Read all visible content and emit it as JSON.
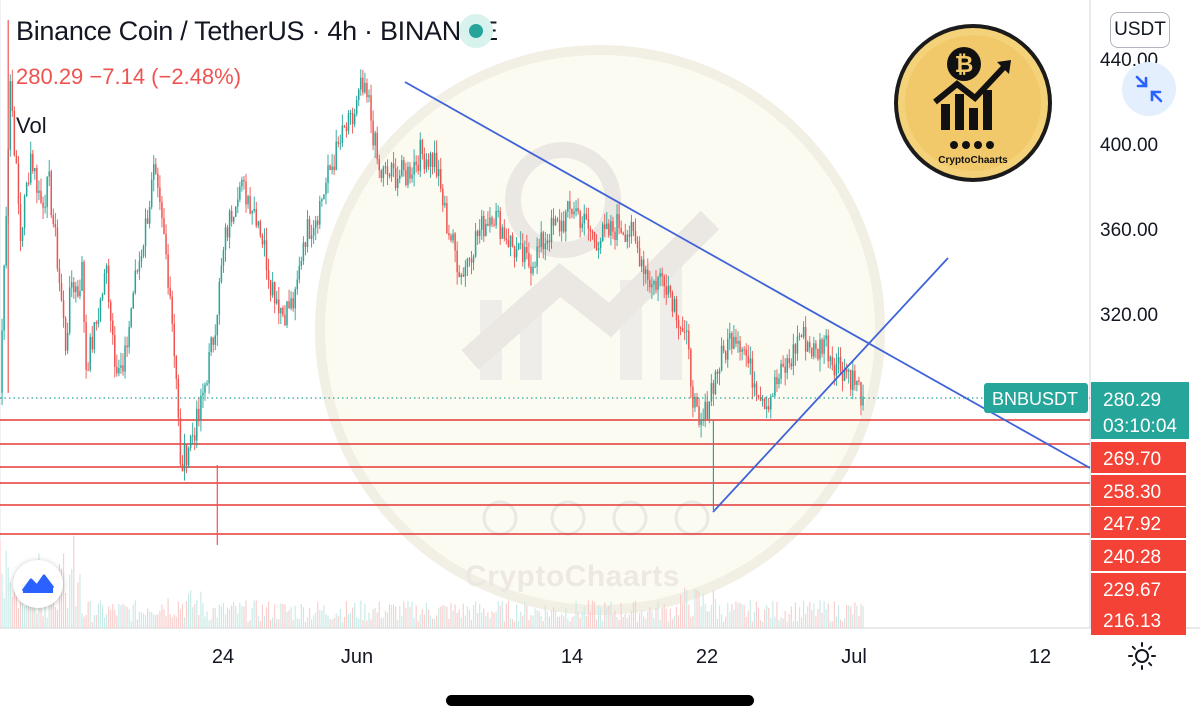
{
  "header": {
    "symbol": "Binance Coin / TetherUS",
    "interval": "4h",
    "exchange": "BINANCE",
    "price_line": "280.29  −7.14 (−2.48%)",
    "vol_label": "Vol"
  },
  "currency_button": "USDT",
  "watermark": {
    "brand": "CryptoChaarts"
  },
  "colors": {
    "up": "#26a69a",
    "down": "#ef5350",
    "trendline": "#3f63d8",
    "level": "#e53935",
    "level_label_bg": "#f44336",
    "price_label_bg": "#26a69a"
  },
  "icons": [
    "tradingview-logo-icon",
    "collapse-arrows-icon",
    "settings-sun-icon",
    "status-dot-icon",
    "bitcoin-chart-logo-icon"
  ],
  "chart_data": {
    "type": "candlestick",
    "interval": "4h",
    "ylim": [
      213,
      443
    ],
    "y_ticks": [
      400,
      360,
      320
    ],
    "x_ticks": [
      {
        "label": "24",
        "i": 87
      },
      {
        "label": "Jun",
        "i": 136
      },
      {
        "label": "14",
        "i": 274
      },
      {
        "label": "22",
        "i": 342
      },
      {
        "label": "Jul",
        "i": 412
      },
      {
        "label": "12",
        "i": 504
      }
    ],
    "current_price": {
      "symbol": "BNBUSDT",
      "value": "280.29",
      "countdown": "03:10:04"
    },
    "levels": [
      {
        "value": 270.8,
        "label": ""
      },
      {
        "value": 269.7,
        "label": "269.70"
      },
      {
        "value": 258.3,
        "label": "258.30"
      },
      {
        "value": 247.92,
        "label": "247.92"
      },
      {
        "value": 240.28,
        "label": "240.28"
      },
      {
        "value": 229.67,
        "label": "229.67"
      },
      {
        "value": 216.13,
        "label": "216.13"
      }
    ],
    "trendlines": [
      {
        "from": {
          "i": 177,
          "y": 428
        },
        "to": {
          "i": 548,
          "y": 251
        }
      },
      {
        "from": {
          "i": 346,
          "y": 231
        },
        "to": {
          "i": 463,
          "y": 346
        }
      }
    ],
    "price_anchors": [
      [
        0,
        282
      ],
      [
        5,
        430
      ],
      [
        10,
        355
      ],
      [
        15,
        395
      ],
      [
        20,
        372
      ],
      [
        24,
        380
      ],
      [
        28,
        345
      ],
      [
        32,
        305
      ],
      [
        35,
        335
      ],
      [
        38,
        330
      ],
      [
        40,
        340
      ],
      [
        42,
        295
      ],
      [
        46,
        310
      ],
      [
        52,
        340
      ],
      [
        56,
        300
      ],
      [
        60,
        290
      ],
      [
        65,
        330
      ],
      [
        70,
        355
      ],
      [
        75,
        385
      ],
      [
        80,
        355
      ],
      [
        83,
        330
      ],
      [
        86,
        290
      ],
      [
        88,
        245
      ],
      [
        92,
        258
      ],
      [
        97,
        270
      ],
      [
        104,
        308
      ],
      [
        110,
        355
      ],
      [
        116,
        380
      ],
      [
        121,
        375
      ],
      [
        126,
        365
      ],
      [
        132,
        335
      ],
      [
        138,
        320
      ],
      [
        144,
        325
      ],
      [
        148,
        355
      ],
      [
        155,
        368
      ],
      [
        162,
        390
      ],
      [
        168,
        405
      ],
      [
        172,
        410
      ],
      [
        176,
        425
      ],
      [
        180,
        418
      ],
      [
        185,
        385
      ],
      [
        191,
        385
      ],
      [
        198,
        385
      ],
      [
        205,
        395
      ],
      [
        212,
        392
      ],
      [
        218,
        362
      ],
      [
        225,
        338
      ],
      [
        232,
        355
      ],
      [
        240,
        368
      ],
      [
        246,
        358
      ],
      [
        252,
        348
      ],
      [
        258,
        343
      ],
      [
        262,
        348
      ],
      [
        268,
        358
      ],
      [
        274,
        362
      ],
      [
        280,
        370
      ],
      [
        285,
        362
      ],
      [
        290,
        355
      ],
      [
        296,
        356
      ],
      [
        302,
        362
      ],
      [
        307,
        358
      ],
      [
        312,
        348
      ],
      [
        318,
        333
      ],
      [
        324,
        338
      ],
      [
        330,
        322
      ],
      [
        335,
        305
      ],
      [
        338,
        282
      ],
      [
        341,
        262
      ],
      [
        344,
        272
      ],
      [
        347,
        285
      ],
      [
        352,
        298
      ],
      [
        358,
        312
      ],
      [
        362,
        306
      ],
      [
        366,
        292
      ],
      [
        370,
        285
      ],
      [
        374,
        278
      ],
      [
        378,
        285
      ],
      [
        382,
        292
      ],
      [
        386,
        298
      ],
      [
        390,
        310
      ],
      [
        394,
        306
      ],
      [
        398,
        300
      ],
      [
        402,
        308
      ],
      [
        406,
        298
      ],
      [
        410,
        295
      ],
      [
        414,
        292
      ],
      [
        418,
        285
      ],
      [
        421,
        280.29
      ]
    ],
    "volume_note": "volume histogram at chart bottom; highest bars near late May"
  }
}
